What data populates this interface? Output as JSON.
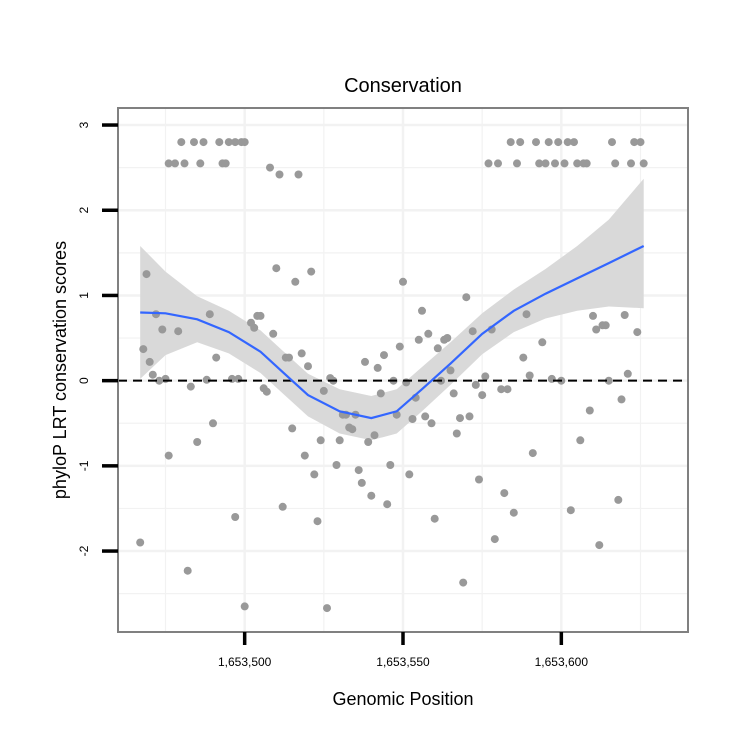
{
  "chart_data": {
    "type": "scatter",
    "title": "Conservation",
    "xlabel": "Genomic Position",
    "ylabel": "phyloP LRT conservation scores",
    "xlim": [
      1653460,
      1653640
    ],
    "ylim": [
      -2.95,
      3.2
    ],
    "x_ticks": [
      1653500,
      1653550,
      1653600
    ],
    "x_tick_labels": [
      "1,653,500",
      "1,653,550",
      "1,653,600"
    ],
    "y_ticks": [
      -2,
      -1,
      0,
      1,
      2,
      3
    ],
    "y_tick_labels": [
      "-2",
      "-1",
      "0",
      "1",
      "2",
      "3"
    ],
    "grid": true,
    "reference_line": {
      "y": 0,
      "style": "dashed"
    },
    "colors": {
      "points": "#999999",
      "smooth_line": "#3366ff",
      "confidence_band": "#d9d9d9",
      "grid": "#f2f2f2",
      "panel_border": "#808080"
    },
    "points": [
      {
        "x": 1653467,
        "y": -1.9
      },
      {
        "x": 1653468,
        "y": 0.37
      },
      {
        "x": 1653469,
        "y": 1.25
      },
      {
        "x": 1653470,
        "y": 0.22
      },
      {
        "x": 1653471,
        "y": 0.07
      },
      {
        "x": 1653472,
        "y": 0.78
      },
      {
        "x": 1653473,
        "y": 0.0
      },
      {
        "x": 1653474,
        "y": 0.6
      },
      {
        "x": 1653475,
        "y": 0.02
      },
      {
        "x": 1653476,
        "y": -0.88
      },
      {
        "x": 1653476,
        "y": 2.55
      },
      {
        "x": 1653478,
        "y": 2.55
      },
      {
        "x": 1653479,
        "y": 0.58
      },
      {
        "x": 1653480,
        "y": 2.8
      },
      {
        "x": 1653481,
        "y": 2.55
      },
      {
        "x": 1653482,
        "y": -2.23
      },
      {
        "x": 1653483,
        "y": -0.07
      },
      {
        "x": 1653484,
        "y": 2.8
      },
      {
        "x": 1653485,
        "y": -0.72
      },
      {
        "x": 1653486,
        "y": 2.55
      },
      {
        "x": 1653487,
        "y": 2.8
      },
      {
        "x": 1653488,
        "y": 0.01
      },
      {
        "x": 1653489,
        "y": 0.78
      },
      {
        "x": 1653490,
        "y": -0.5
      },
      {
        "x": 1653491,
        "y": 0.27
      },
      {
        "x": 1653492,
        "y": 2.8
      },
      {
        "x": 1653493,
        "y": 2.55
      },
      {
        "x": 1653494,
        "y": 2.55
      },
      {
        "x": 1653495,
        "y": 2.8
      },
      {
        "x": 1653496,
        "y": 0.02
      },
      {
        "x": 1653497,
        "y": 2.8
      },
      {
        "x": 1653497,
        "y": -1.6
      },
      {
        "x": 1653498,
        "y": 0.02
      },
      {
        "x": 1653499,
        "y": 2.8
      },
      {
        "x": 1653500,
        "y": -2.65
      },
      {
        "x": 1653500,
        "y": 2.8
      },
      {
        "x": 1653502,
        "y": 0.68
      },
      {
        "x": 1653503,
        "y": 0.62
      },
      {
        "x": 1653504,
        "y": 0.76
      },
      {
        "x": 1653505,
        "y": 0.76
      },
      {
        "x": 1653506,
        "y": -0.09
      },
      {
        "x": 1653507,
        "y": -0.13
      },
      {
        "x": 1653508,
        "y": 2.5
      },
      {
        "x": 1653509,
        "y": 0.55
      },
      {
        "x": 1653510,
        "y": 1.32
      },
      {
        "x": 1653511,
        "y": 2.42
      },
      {
        "x": 1653512,
        "y": -1.48
      },
      {
        "x": 1653513,
        "y": 0.27
      },
      {
        "x": 1653514,
        "y": 0.27
      },
      {
        "x": 1653515,
        "y": -0.56
      },
      {
        "x": 1653516,
        "y": 1.16
      },
      {
        "x": 1653517,
        "y": 2.42
      },
      {
        "x": 1653518,
        "y": 0.32
      },
      {
        "x": 1653519,
        "y": -0.88
      },
      {
        "x": 1653520,
        "y": 0.17
      },
      {
        "x": 1653521,
        "y": 1.28
      },
      {
        "x": 1653522,
        "y": -1.1
      },
      {
        "x": 1653523,
        "y": -1.65
      },
      {
        "x": 1653524,
        "y": -0.7
      },
      {
        "x": 1653525,
        "y": -0.12
      },
      {
        "x": 1653526,
        "y": -2.67
      },
      {
        "x": 1653527,
        "y": 0.03
      },
      {
        "x": 1653528,
        "y": 0.0
      },
      {
        "x": 1653529,
        "y": -0.99
      },
      {
        "x": 1653530,
        "y": -0.7
      },
      {
        "x": 1653531,
        "y": -0.4
      },
      {
        "x": 1653532,
        "y": -0.4
      },
      {
        "x": 1653533,
        "y": -0.55
      },
      {
        "x": 1653534,
        "y": -0.57
      },
      {
        "x": 1653535,
        "y": -0.4
      },
      {
        "x": 1653536,
        "y": -1.05
      },
      {
        "x": 1653537,
        "y": -1.2
      },
      {
        "x": 1653538,
        "y": 0.22
      },
      {
        "x": 1653539,
        "y": -0.72
      },
      {
        "x": 1653540,
        "y": -1.35
      },
      {
        "x": 1653541,
        "y": -0.64
      },
      {
        "x": 1653542,
        "y": 0.15
      },
      {
        "x": 1653543,
        "y": -0.15
      },
      {
        "x": 1653544,
        "y": 0.3
      },
      {
        "x": 1653545,
        "y": -1.45
      },
      {
        "x": 1653546,
        "y": -0.99
      },
      {
        "x": 1653547,
        "y": 0.0
      },
      {
        "x": 1653548,
        "y": -0.4
      },
      {
        "x": 1653549,
        "y": 0.4
      },
      {
        "x": 1653550,
        "y": 1.16
      },
      {
        "x": 1653551,
        "y": -0.02
      },
      {
        "x": 1653552,
        "y": -1.1
      },
      {
        "x": 1653553,
        "y": -0.45
      },
      {
        "x": 1653554,
        "y": -0.2
      },
      {
        "x": 1653555,
        "y": 0.48
      },
      {
        "x": 1653556,
        "y": 0.82
      },
      {
        "x": 1653557,
        "y": -0.42
      },
      {
        "x": 1653558,
        "y": 0.55
      },
      {
        "x": 1653559,
        "y": -0.5
      },
      {
        "x": 1653560,
        "y": -1.62
      },
      {
        "x": 1653561,
        "y": 0.38
      },
      {
        "x": 1653562,
        "y": 0.0
      },
      {
        "x": 1653563,
        "y": 0.48
      },
      {
        "x": 1653564,
        "y": 0.5
      },
      {
        "x": 1653565,
        "y": 0.12
      },
      {
        "x": 1653566,
        "y": -0.15
      },
      {
        "x": 1653567,
        "y": -0.62
      },
      {
        "x": 1653568,
        "y": -0.44
      },
      {
        "x": 1653569,
        "y": -2.37
      },
      {
        "x": 1653570,
        "y": 0.98
      },
      {
        "x": 1653571,
        "y": -0.42
      },
      {
        "x": 1653572,
        "y": 0.58
      },
      {
        "x": 1653573,
        "y": -0.05
      },
      {
        "x": 1653574,
        "y": -1.16
      },
      {
        "x": 1653575,
        "y": -0.17
      },
      {
        "x": 1653576,
        "y": 0.05
      },
      {
        "x": 1653577,
        "y": 2.55
      },
      {
        "x": 1653578,
        "y": 0.6
      },
      {
        "x": 1653579,
        "y": -1.86
      },
      {
        "x": 1653580,
        "y": 2.55
      },
      {
        "x": 1653581,
        "y": -0.1
      },
      {
        "x": 1653582,
        "y": -1.32
      },
      {
        "x": 1653583,
        "y": -0.1
      },
      {
        "x": 1653584,
        "y": 2.8
      },
      {
        "x": 1653585,
        "y": -1.55
      },
      {
        "x": 1653586,
        "y": 2.55
      },
      {
        "x": 1653587,
        "y": 2.8
      },
      {
        "x": 1653588,
        "y": 0.27
      },
      {
        "x": 1653589,
        "y": 0.78
      },
      {
        "x": 1653590,
        "y": 0.06
      },
      {
        "x": 1653591,
        "y": -0.85
      },
      {
        "x": 1653592,
        "y": 2.8
      },
      {
        "x": 1653593,
        "y": 2.55
      },
      {
        "x": 1653594,
        "y": 0.45
      },
      {
        "x": 1653595,
        "y": 2.55
      },
      {
        "x": 1653596,
        "y": 2.8
      },
      {
        "x": 1653597,
        "y": 0.02
      },
      {
        "x": 1653598,
        "y": 2.55
      },
      {
        "x": 1653599,
        "y": 2.8
      },
      {
        "x": 1653600,
        "y": 0.0
      },
      {
        "x": 1653601,
        "y": 2.55
      },
      {
        "x": 1653602,
        "y": 2.8
      },
      {
        "x": 1653603,
        "y": -1.52
      },
      {
        "x": 1653604,
        "y": 2.8
      },
      {
        "x": 1653605,
        "y": 2.55
      },
      {
        "x": 1653606,
        "y": -0.7
      },
      {
        "x": 1653607,
        "y": 2.55
      },
      {
        "x": 1653608,
        "y": 2.55
      },
      {
        "x": 1653609,
        "y": -0.35
      },
      {
        "x": 1653610,
        "y": 0.76
      },
      {
        "x": 1653611,
        "y": 0.6
      },
      {
        "x": 1653612,
        "y": -1.93
      },
      {
        "x": 1653613,
        "y": 0.65
      },
      {
        "x": 1653614,
        "y": 0.65
      },
      {
        "x": 1653615,
        "y": 0.0
      },
      {
        "x": 1653616,
        "y": 2.8
      },
      {
        "x": 1653617,
        "y": 2.55
      },
      {
        "x": 1653618,
        "y": -1.4
      },
      {
        "x": 1653619,
        "y": -0.22
      },
      {
        "x": 1653620,
        "y": 0.77
      },
      {
        "x": 1653621,
        "y": 0.08
      },
      {
        "x": 1653622,
        "y": 2.55
      },
      {
        "x": 1653623,
        "y": 2.8
      },
      {
        "x": 1653624,
        "y": 0.57
      },
      {
        "x": 1653625,
        "y": 2.8
      },
      {
        "x": 1653626,
        "y": 2.55
      }
    ],
    "smooth_fit": [
      {
        "x": 1653467,
        "y": 0.8,
        "lo": 0.02,
        "hi": 1.58
      },
      {
        "x": 1653475,
        "y": 0.79,
        "lo": 0.3,
        "hi": 1.28
      },
      {
        "x": 1653485,
        "y": 0.72,
        "lo": 0.45,
        "hi": 0.99
      },
      {
        "x": 1653495,
        "y": 0.57,
        "lo": 0.32,
        "hi": 0.82
      },
      {
        "x": 1653505,
        "y": 0.34,
        "lo": 0.09,
        "hi": 0.59
      },
      {
        "x": 1653512,
        "y": 0.1,
        "lo": -0.15,
        "hi": 0.35
      },
      {
        "x": 1653520,
        "y": -0.17,
        "lo": -0.42,
        "hi": 0.08
      },
      {
        "x": 1653530,
        "y": -0.36,
        "lo": -0.62,
        "hi": -0.1
      },
      {
        "x": 1653540,
        "y": -0.44,
        "lo": -0.7,
        "hi": -0.18
      },
      {
        "x": 1653548,
        "y": -0.36,
        "lo": -0.62,
        "hi": -0.1
      },
      {
        "x": 1653556,
        "y": -0.1,
        "lo": -0.36,
        "hi": 0.16
      },
      {
        "x": 1653565,
        "y": 0.2,
        "lo": -0.05,
        "hi": 0.45
      },
      {
        "x": 1653575,
        "y": 0.55,
        "lo": 0.31,
        "hi": 0.79
      },
      {
        "x": 1653585,
        "y": 0.82,
        "lo": 0.57,
        "hi": 1.07
      },
      {
        "x": 1653595,
        "y": 1.02,
        "lo": 0.73,
        "hi": 1.31
      },
      {
        "x": 1653605,
        "y": 1.2,
        "lo": 0.82,
        "hi": 1.58
      },
      {
        "x": 1653615,
        "y": 1.38,
        "lo": 0.87,
        "hi": 1.89
      },
      {
        "x": 1653626,
        "y": 1.58,
        "lo": 0.85,
        "hi": 2.37
      }
    ]
  }
}
